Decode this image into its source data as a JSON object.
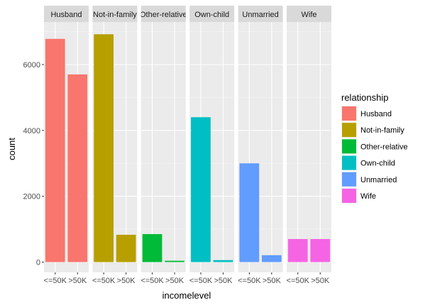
{
  "chart_data": {
    "type": "bar",
    "facet_by": "relationship",
    "facets": [
      "Husband",
      "Not-in-family",
      "Other-relative",
      "Own-child",
      "Unmarried",
      "Wife"
    ],
    "categories": [
      "<=50K",
      ">50K"
    ],
    "tick_labels": [
      "<=50K",
      ">50K"
    ],
    "series": [
      {
        "name": "Husband",
        "values": [
          6780,
          5700
        ]
      },
      {
        "name": "Not-in-family",
        "values": [
          6920,
          830
        ]
      },
      {
        "name": "Other-relative",
        "values": [
          850,
          40
        ]
      },
      {
        "name": "Own-child",
        "values": [
          4400,
          60
        ]
      },
      {
        "name": "Unmarried",
        "values": [
          3000,
          210
        ]
      },
      {
        "name": "Wife",
        "values": [
          700,
          700
        ]
      }
    ],
    "xlabel": "incomelevel",
    "ylabel": "count",
    "ylim": [
      0,
      7300
    ],
    "yticks": [
      0,
      2000,
      4000,
      6000
    ],
    "grid": true,
    "legend": {
      "title": "relationship",
      "placement": "right",
      "entries": [
        "Husband",
        "Not-in-family",
        "Other-relative",
        "Own-child",
        "Unmarried",
        "Wife"
      ]
    },
    "colors": [
      "#F8766D",
      "#B79F00",
      "#00BA38",
      "#00BFC4",
      "#619CFF",
      "#F564E3"
    ],
    "panel_background": "#EBEBEB",
    "strip_background": "#D9D9D9"
  }
}
